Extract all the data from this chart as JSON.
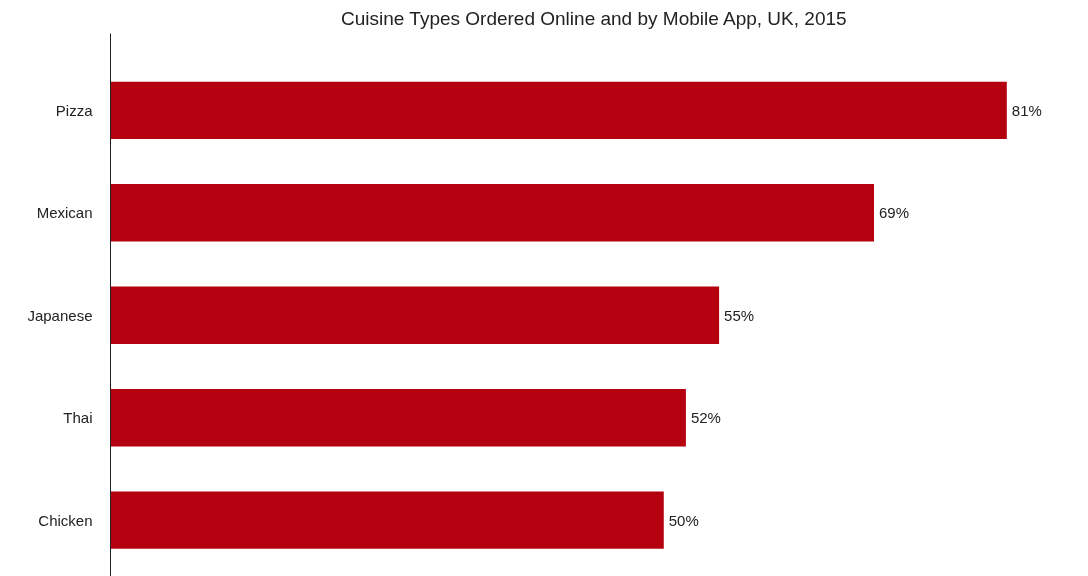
{
  "chart_data": {
    "type": "bar",
    "orientation": "horizontal",
    "title": "Cuisine Types Ordered Online and by Mobile App, UK, 2015",
    "categories": [
      "Pizza",
      "Mexican",
      "Japanese",
      "Thai",
      "Chicken"
    ],
    "values": [
      81,
      69,
      55,
      52,
      50
    ],
    "value_labels": [
      "81%",
      "69%",
      "55%",
      "52%",
      "50%"
    ],
    "color": "#b5000f",
    "grid": false
  }
}
